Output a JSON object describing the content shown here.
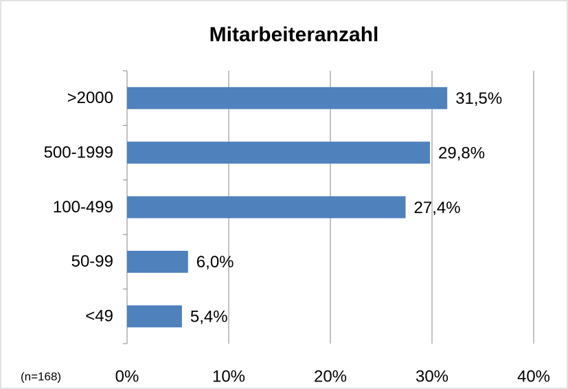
{
  "chart_data": {
    "type": "bar",
    "orientation": "horizontal",
    "title": "Mitarbeiteranzahl",
    "annotation": "(n=168)",
    "categories": [
      ">2000",
      "500-1999",
      "100-499",
      "50-99",
      "<49"
    ],
    "values": [
      31.5,
      29.8,
      27.4,
      6.0,
      5.4
    ],
    "value_labels": [
      "31,5%",
      "29,8%",
      "27,4%",
      "6,0%",
      "5,4%"
    ],
    "color": "#4f81bd",
    "xlim": [
      0,
      40
    ],
    "xticks": [
      {
        "value": 0,
        "label": "0%"
      },
      {
        "value": 10,
        "label": "10%"
      },
      {
        "value": 20,
        "label": "20%"
      },
      {
        "value": 30,
        "label": "30%"
      },
      {
        "value": 40,
        "label": "40%"
      }
    ],
    "grid": true
  }
}
